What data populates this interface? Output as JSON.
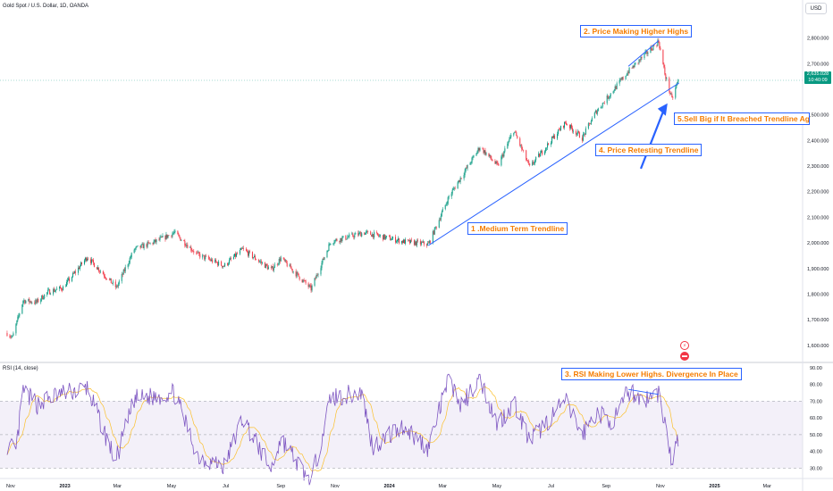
{
  "header": {
    "title": "Gold Spot / U.S. Dollar, 1D, OANDA",
    "currency_button": "USD"
  },
  "rsi_panel": {
    "label": "RSI (14, close)"
  },
  "last_price": {
    "value": "2,635.028",
    "countdown": "10:40:09"
  },
  "annotations": {
    "a1": "1 .Medium Term Trendline",
    "a2": "2. Price Making Higher Highs",
    "a3": "3. RSI Making Lower Highs. Divergence In Place",
    "a4": "4. Price Retesting Trendline",
    "a5": "5.Sell Big if It Breached Trendline Aga"
  },
  "icons": {
    "lightning": "lightning-icon",
    "flag": "flag-icon"
  },
  "colors": {
    "candle_up": "#089981",
    "candle_down": "#f23645",
    "trendline": "#2962ff",
    "rsi_line": "#7e57c2",
    "rsi_ma": "#fbc02d",
    "rsi_band": "#7e57c2",
    "annotation_text": "#f57c00"
  },
  "chart_data": [
    {
      "type": "candlestick",
      "title": "Gold Spot / U.S. Dollar, 1D, OANDA",
      "x_tick_labels": [
        "Nov",
        "2023",
        "Mar",
        "May",
        "Jul",
        "Sep",
        "Nov",
        "2024",
        "Mar",
        "May",
        "Jul",
        "Sep",
        "Nov",
        "2025",
        "Mar"
      ],
      "y_tick_labels": [
        "1,600.000",
        "1,700.000",
        "1,800.000",
        "1,900.000",
        "2,000.000",
        "2,100.000",
        "2,200.000",
        "2,300.000",
        "2,400.000",
        "2,500.000",
        "2,700.000",
        "2,800.000"
      ],
      "ylim": [
        1540,
        2900
      ],
      "series": [
        {
          "name": "XAUUSD close (approx. from chart)",
          "x": [
            "2022-10-28",
            "2022-11-03",
            "2022-11-15",
            "2022-11-30",
            "2022-12-13",
            "2022-12-30",
            "2023-01-26",
            "2023-02-28",
            "2023-03-20",
            "2023-04-13",
            "2023-05-04",
            "2023-05-30",
            "2023-06-29",
            "2023-07-20",
            "2023-08-21",
            "2023-09-01",
            "2023-10-05",
            "2023-10-27",
            "2023-12-04",
            "2024-01-17",
            "2024-02-14",
            "2024-03-08",
            "2024-04-12",
            "2024-05-02",
            "2024-05-20",
            "2024-06-07",
            "2024-07-17",
            "2024-08-05",
            "2024-08-20",
            "2024-09-26",
            "2024-10-30",
            "2024-11-06",
            "2024-11-14",
            "2024-11-21"
          ],
          "values": [
            1648,
            1630,
            1775,
            1768,
            1808,
            1825,
            1945,
            1825,
            1975,
            2005,
            2040,
            1955,
            1910,
            1975,
            1895,
            1940,
            1820,
            2005,
            2040,
            2005,
            1995,
            2180,
            2375,
            2300,
            2440,
            2295,
            2470,
            2410,
            2510,
            2670,
            2788,
            2660,
            2560,
            2635
          ]
        }
      ],
      "trendlines": [
        {
          "label": "1 .Medium Term Trendline",
          "from": {
            "x": "2024-02-14",
            "y": 1990
          },
          "to": {
            "x": "2024-11-22",
            "y": 2625
          }
        },
        {
          "label": "2. Price Making Higher Highs",
          "from": {
            "x": "2024-09-26",
            "y": 2690
          },
          "to": {
            "x": "2024-10-30",
            "y": 2790
          }
        }
      ]
    },
    {
      "type": "line",
      "title": "RSI (14, close)",
      "y_tick_labels": [
        "30.00",
        "40.00",
        "50.00",
        "60.00",
        "70.00",
        "80.00",
        "90.00"
      ],
      "ylim": [
        26,
        92
      ],
      "bands": [
        30,
        50,
        70
      ],
      "series": [
        {
          "name": "RSI (14, close)",
          "x": [
            "2022-10-28",
            "2022-11-07",
            "2022-11-15",
            "2022-12-01",
            "2022-12-20",
            "2023-01-26",
            "2023-02-27",
            "2023-03-20",
            "2023-04-14",
            "2023-05-04",
            "2023-05-31",
            "2023-06-29",
            "2023-07-20",
            "2023-08-21",
            "2023-09-01",
            "2023-10-05",
            "2023-10-27",
            "2023-12-01",
            "2023-12-13",
            "2024-01-17",
            "2024-02-14",
            "2024-03-08",
            "2024-03-22",
            "2024-04-12",
            "2024-05-02",
            "2024-05-20",
            "2024-06-07",
            "2024-07-17",
            "2024-08-05",
            "2024-08-21",
            "2024-09-10",
            "2024-09-26",
            "2024-10-15",
            "2024-10-30",
            "2024-11-08",
            "2024-11-14",
            "2024-11-21"
          ],
          "values": [
            44,
            40,
            76,
            68,
            73,
            78,
            34,
            71,
            73,
            75,
            37,
            31,
            60,
            29,
            48,
            21,
            72,
            75,
            43,
            55,
            42,
            84,
            67,
            84,
            56,
            70,
            46,
            70,
            50,
            63,
            58,
            76,
            71,
            75,
            52,
            32,
            48
          ]
        }
      ]
    }
  ]
}
